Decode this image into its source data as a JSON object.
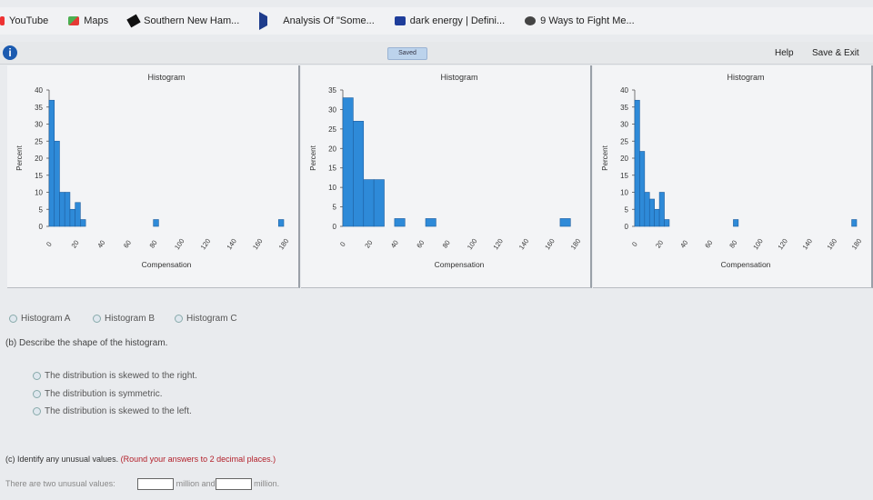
{
  "bookmarks": [
    {
      "label": "YouTube",
      "icon": "youtube-icon"
    },
    {
      "label": "Maps",
      "icon": "maps-icon"
    },
    {
      "label": "Southern New Ham...",
      "icon": "pen-icon"
    },
    {
      "label": "Analysis Of \"Some...",
      "icon": "play-icon"
    },
    {
      "label": "dark energy | Defini...",
      "icon": "dictionary-icon"
    },
    {
      "label": "9 Ways to Fight Me...",
      "icon": "site-icon"
    }
  ],
  "toolbar": {
    "info_glyph": "i",
    "saved_label": "Saved",
    "help_label": "Help",
    "save_exit_label": "Save & Exit"
  },
  "chart_data": [
    {
      "type": "bar",
      "title": "Histogram",
      "xlabel": "Compensation",
      "ylabel": "Percent",
      "x_ticks": [
        "0",
        "20",
        "40",
        "60",
        "80",
        "100",
        "120",
        "140",
        "160",
        "180"
      ],
      "y_ticks": [
        "0",
        "5",
        "10",
        "15",
        "20",
        "25",
        "30",
        "35",
        "40"
      ],
      "ylim": [
        0,
        40
      ],
      "xlim": [
        0,
        180
      ],
      "bin_width": 4,
      "bins": [
        {
          "x": 0,
          "value": 37
        },
        {
          "x": 4,
          "value": 25
        },
        {
          "x": 8,
          "value": 10
        },
        {
          "x": 12,
          "value": 10
        },
        {
          "x": 16,
          "value": 5
        },
        {
          "x": 20,
          "value": 7
        },
        {
          "x": 24,
          "value": 2
        },
        {
          "x": 80,
          "value": 2
        },
        {
          "x": 176,
          "value": 2
        }
      ]
    },
    {
      "type": "bar",
      "title": "Histogram",
      "xlabel": "Compensation",
      "ylabel": "Percent",
      "x_ticks": [
        "0",
        "20",
        "40",
        "60",
        "80",
        "100",
        "120",
        "140",
        "160",
        "180"
      ],
      "y_ticks": [
        "0",
        "5",
        "10",
        "15",
        "20",
        "25",
        "30",
        "35"
      ],
      "ylim": [
        0,
        35
      ],
      "xlim": [
        0,
        180
      ],
      "bin_width": 8,
      "bins": [
        {
          "x": 0,
          "value": 33
        },
        {
          "x": 8,
          "value": 27
        },
        {
          "x": 16,
          "value": 12
        },
        {
          "x": 24,
          "value": 12
        },
        {
          "x": 40,
          "value": 2
        },
        {
          "x": 64,
          "value": 2
        },
        {
          "x": 168,
          "value": 2
        }
      ]
    },
    {
      "type": "bar",
      "title": "Histogram",
      "xlabel": "Compensation",
      "ylabel": "Percent",
      "x_ticks": [
        "0",
        "20",
        "40",
        "60",
        "80",
        "100",
        "120",
        "140",
        "160",
        "180"
      ],
      "y_ticks": [
        "0",
        "5",
        "10",
        "15",
        "20",
        "25",
        "30",
        "35",
        "40"
      ],
      "ylim": [
        0,
        40
      ],
      "xlim": [
        0,
        180
      ],
      "bin_width": 4,
      "bins": [
        {
          "x": 0,
          "value": 37
        },
        {
          "x": 4,
          "value": 22
        },
        {
          "x": 8,
          "value": 10
        },
        {
          "x": 12,
          "value": 8
        },
        {
          "x": 16,
          "value": 5
        },
        {
          "x": 20,
          "value": 10
        },
        {
          "x": 24,
          "value": 2
        },
        {
          "x": 80,
          "value": 2
        },
        {
          "x": 176,
          "value": 2
        }
      ]
    }
  ],
  "questions": {
    "histogram_choices": [
      "Histogram A",
      "Histogram B",
      "Histogram C"
    ],
    "part_b": {
      "prompt": "(b) Describe the shape of the histogram.",
      "choices": [
        "The distribution is skewed to the right.",
        "The distribution is symmetric.",
        "The distribution is skewed to the left."
      ]
    },
    "part_c": {
      "prompt_start": "(c) Identify any unusual values.",
      "prompt_hint": "(Round your answers to 2 decimal places.)",
      "answer_prefix": "There are two unusual values:",
      "unit_1": "million and",
      "unit_2": "million."
    }
  },
  "colors": {
    "bar_fill": "#2e8ad8",
    "bar_stroke": "#1f5fa0",
    "hint_text": "#b3202a",
    "info_icon": "#1c5bb0"
  }
}
